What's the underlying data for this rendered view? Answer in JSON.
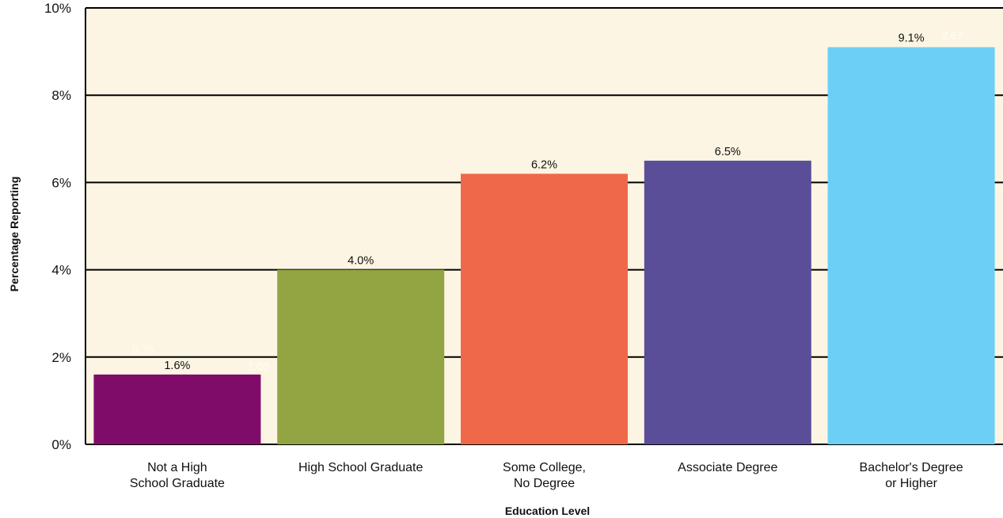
{
  "chart_data": {
    "type": "bar",
    "title": "",
    "xlabel": "Education Level",
    "ylabel": "Percentage Reporting",
    "ylim": [
      0,
      10
    ],
    "yticks": [
      0,
      2,
      4,
      6,
      8,
      10
    ],
    "ytick_labels": [
      "0%",
      "2%",
      "4%",
      "6%",
      "8%",
      "10%"
    ],
    "grid": true,
    "legend": "none",
    "categories": [
      [
        "Not a High",
        "School Graduate"
      ],
      [
        "High School Graduate"
      ],
      [
        "Some College,",
        "No Degree"
      ],
      [
        "Associate Degree"
      ],
      [
        "Bachelor's Degree",
        "or Higher"
      ]
    ],
    "values": [
      1.6,
      4.0,
      6.2,
      6.5,
      9.1
    ],
    "data_labels": [
      "1.6%",
      "4.0%",
      "6.2%",
      "6.5%",
      "9.1%"
    ],
    "colors": [
      "#800c6a",
      "#93a443",
      "#f0684a",
      "#5a4e99",
      "#6ccff6"
    ],
    "secondary_labels": [
      "0.75",
      "1.00",
      "",
      "",
      "2.67"
    ],
    "plot_background": "#fdf5e3",
    "gridline_color": "#000000"
  }
}
